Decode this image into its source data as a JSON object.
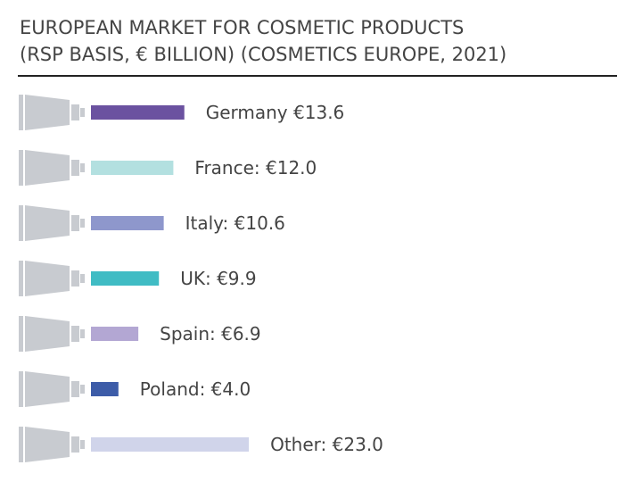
{
  "chart_data": {
    "type": "bar",
    "orientation": "horizontal",
    "title": "EUROPEAN MARKET FOR COSMETIC PRODUCTS",
    "subtitle": "(RSP BASIS, € BILLION) (COSMETICS EUROPE, 2021)",
    "categories": [
      "Germany",
      "France:",
      "Italy:",
      "UK:",
      "Spain:",
      "Poland:",
      "Other:"
    ],
    "values": [
      13.6,
      12.0,
      10.6,
      9.9,
      6.9,
      4.0,
      23.0
    ],
    "value_labels": [
      "€13.6",
      "€12.0",
      "€10.6",
      "€9.9",
      "€6.9",
      "€4.0",
      "€23.0"
    ],
    "colors": [
      "#6b52a0",
      "#b3e0e0",
      "#8e97cc",
      "#40bcc4",
      "#b3a7d3",
      "#3d5ca8",
      "#d0d4ea"
    ]
  }
}
